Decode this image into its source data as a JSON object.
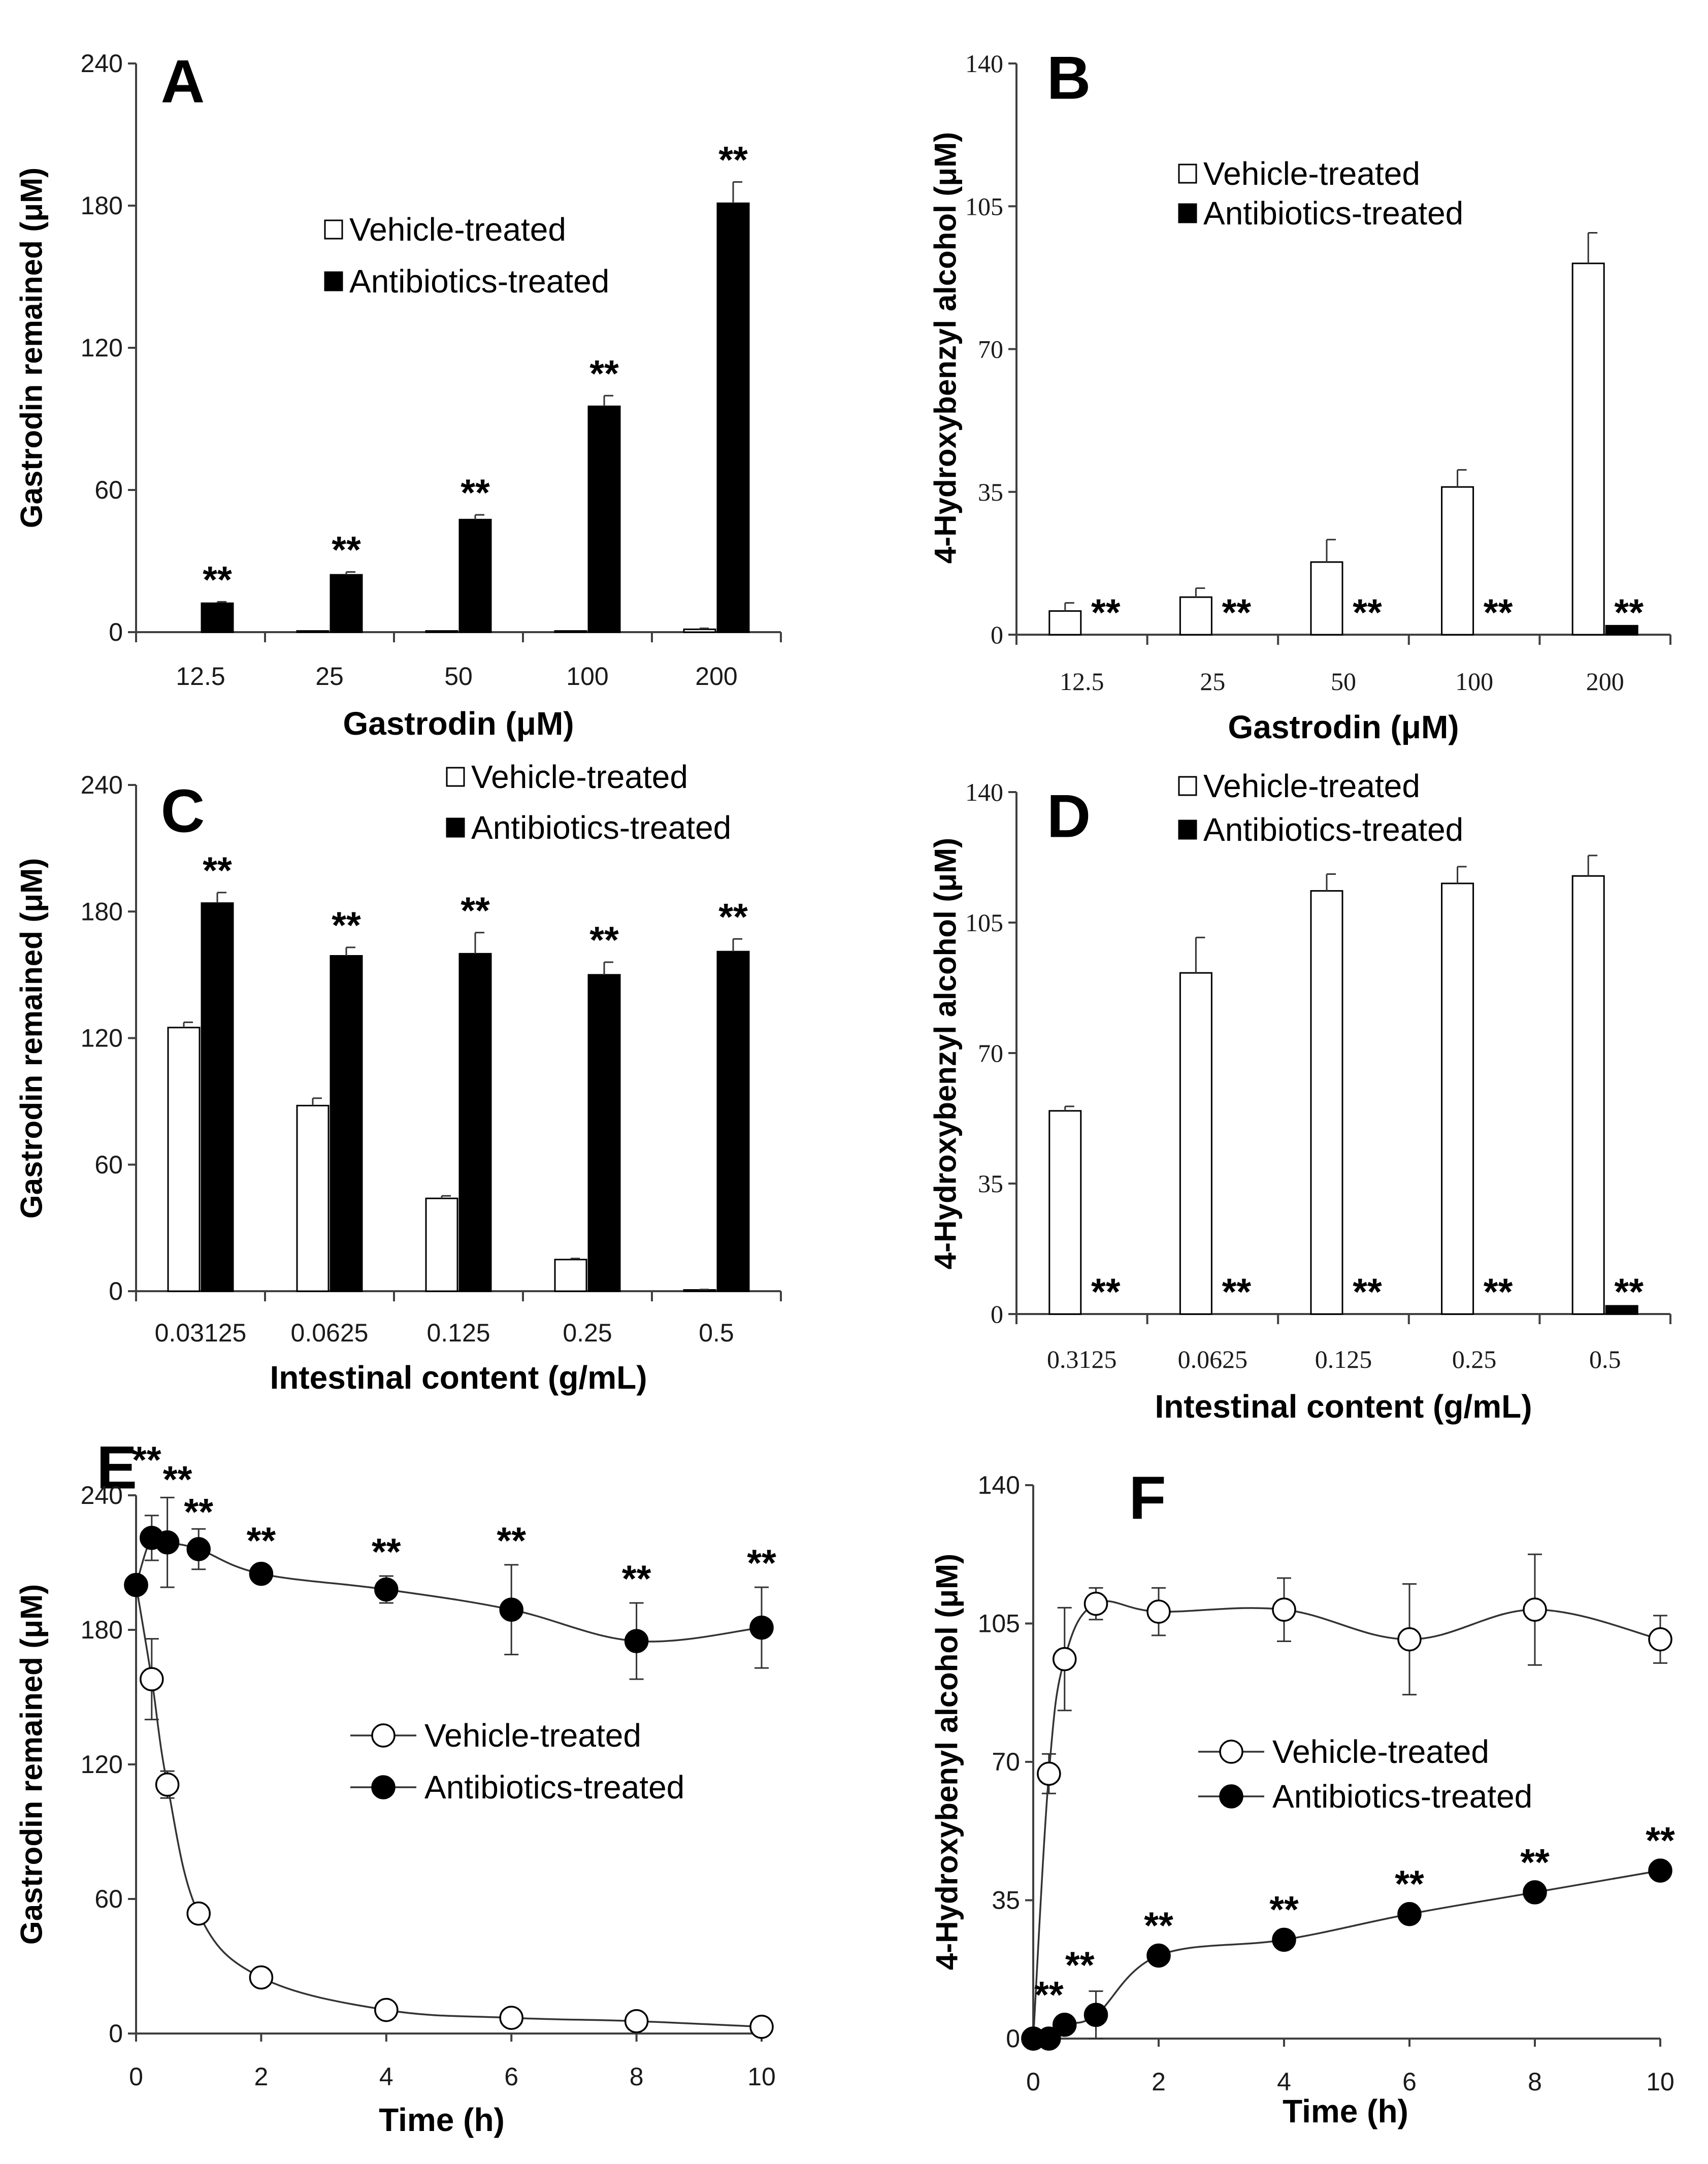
{
  "chart_data": [
    {
      "id": "A",
      "type": "bar",
      "panel_label": "A",
      "xlabel": "Gastrodin (μM)",
      "ylabel": "Gastrodin remained (μM)",
      "ylim": [
        0,
        240
      ],
      "yticks": [
        "0",
        "60",
        "120",
        "180",
        "240"
      ],
      "categories": [
        "12.5",
        "25",
        "50",
        "100",
        "200"
      ],
      "series": [
        {
          "name": "Vehicle-treated",
          "fill": "#ffffff",
          "values": [
            0,
            0.5,
            0.5,
            0.5,
            1.2
          ],
          "errors": [
            0,
            0,
            0,
            0,
            0.4
          ]
        },
        {
          "name": "Antibiotics-treated",
          "fill": "#000000",
          "values": [
            12.2,
            24.2,
            47.5,
            95.3,
            181
          ],
          "errors": [
            0.6,
            1.2,
            2,
            4.5,
            9
          ]
        }
      ],
      "significance": [
        {
          "label": "**",
          "category": 0
        },
        {
          "label": "**",
          "category": 1
        },
        {
          "label": "**",
          "category": 2
        },
        {
          "label": "**",
          "category": 3
        },
        {
          "label": "**",
          "category": 4
        }
      ],
      "legend": "upper-middle"
    },
    {
      "id": "B",
      "type": "bar",
      "panel_label": "B",
      "xlabel": "Gastrodin (μM)",
      "ylabel": "4-Hydroxybenzyl alcohol (μM)",
      "ylim": [
        0,
        140
      ],
      "yticks": [
        "0",
        "35",
        "70",
        "105",
        "140"
      ],
      "categories": [
        "12.5",
        "25",
        "50",
        "100",
        "200"
      ],
      "series": [
        {
          "name": "Vehicle-treated",
          "fill": "#ffffff",
          "values": [
            5.8,
            9.2,
            17.8,
            36.2,
            91
          ],
          "errors": [
            2,
            2.2,
            5.5,
            4.2,
            7.5
          ]
        },
        {
          "name": "Antibiotics-treated",
          "fill": "#000000",
          "values": [
            0,
            0,
            0,
            0,
            2.2
          ],
          "errors": [
            0,
            0,
            0,
            0,
            0
          ]
        }
      ],
      "significance": [
        {
          "label": "**",
          "category": 0
        },
        {
          "label": "**",
          "category": 1
        },
        {
          "label": "**",
          "category": 2
        },
        {
          "label": "**",
          "category": 3
        },
        {
          "label": "**",
          "category": 4
        }
      ],
      "legend": "upper-middle"
    },
    {
      "id": "C",
      "type": "bar",
      "panel_label": "C",
      "xlabel": "Intestinal content (g/mL)",
      "ylabel": "Gastrodin remained (μM)",
      "ylim": [
        0,
        240
      ],
      "yticks": [
        "0",
        "60",
        "120",
        "180",
        "240"
      ],
      "categories": [
        "0.03125",
        "0.0625",
        "0.125",
        "0.25",
        "0.5"
      ],
      "series": [
        {
          "name": "Vehicle-treated",
          "fill": "#ffffff",
          "values": [
            125,
            88,
            44,
            15,
            0.6
          ],
          "errors": [
            2.5,
            3.5,
            1.2,
            0.5,
            0.2
          ]
        },
        {
          "name": "Antibiotics-treated",
          "fill": "#000000",
          "values": [
            184,
            159,
            160,
            150,
            161
          ],
          "errors": [
            5,
            4,
            10,
            6,
            6
          ]
        }
      ],
      "significance": [
        {
          "label": "**",
          "category": 0
        },
        {
          "label": "**",
          "category": 1
        },
        {
          "label": "**",
          "category": 2
        },
        {
          "label": "**",
          "category": 3
        },
        {
          "label": "**",
          "category": 4
        }
      ],
      "legend": "top-right"
    },
    {
      "id": "D",
      "type": "bar",
      "panel_label": "D",
      "xlabel": "Intestinal content (g/mL)",
      "ylabel": "4-Hydroxybenzyl alcohol (μM)",
      "ylim": [
        0,
        140
      ],
      "yticks": [
        "0",
        "35",
        "70",
        "105",
        "140"
      ],
      "categories": [
        "0.3125",
        "0.0625",
        "0.125",
        "0.25",
        "0.5"
      ],
      "series": [
        {
          "name": "Vehicle-treated",
          "fill": "#ffffff",
          "values": [
            54.5,
            91.5,
            113.5,
            115.5,
            117.5
          ],
          "errors": [
            1.2,
            9.5,
            4.5,
            4.5,
            5.5
          ]
        },
        {
          "name": "Antibiotics-treated",
          "fill": "#000000",
          "values": [
            0,
            0,
            0,
            0,
            2.2
          ],
          "errors": [
            0,
            0,
            0,
            0,
            0
          ]
        }
      ],
      "significance": [
        {
          "label": "**",
          "category": 0
        },
        {
          "label": "**",
          "category": 1
        },
        {
          "label": "**",
          "category": 2
        },
        {
          "label": "**",
          "category": 3
        },
        {
          "label": "**",
          "category": 4
        }
      ],
      "legend": "top-right"
    },
    {
      "id": "E",
      "type": "line",
      "panel_label": "E",
      "xlabel": "Time (h)",
      "ylabel": "Gastrodin remained (μM)",
      "xlim": [
        0,
        10
      ],
      "xticks": [
        "0",
        "2",
        "4",
        "6",
        "8",
        "10"
      ],
      "ylim": [
        0,
        240
      ],
      "yticks": [
        "0",
        "60",
        "120",
        "180",
        "240"
      ],
      "series": [
        {
          "name": "Vehicle-treated",
          "marker": "open-circle",
          "x": [
            0,
            0.25,
            0.5,
            1,
            2,
            4,
            6,
            8,
            10
          ],
          "y": [
            200,
            158,
            111,
            53.5,
            25,
            10.5,
            7,
            5.5,
            3
          ],
          "errors": [
            0,
            18,
            6,
            2,
            1.5,
            1,
            0.8,
            0.8,
            0.5
          ]
        },
        {
          "name": "Antibiotics-treated",
          "marker": "filled-circle",
          "x": [
            0,
            0.25,
            0.5,
            1,
            2,
            4,
            6,
            8,
            10
          ],
          "y": [
            200,
            221,
            219,
            216,
            205,
            198,
            189,
            175,
            181
          ],
          "errors": [
            4,
            10,
            20,
            9,
            4,
            6,
            20,
            17,
            18
          ]
        }
      ],
      "significance": [
        {
          "label": "**",
          "x": 0.25
        },
        {
          "label": "**",
          "x": 0.5
        },
        {
          "label": "**",
          "x": 1
        },
        {
          "label": "**",
          "x": 2
        },
        {
          "label": "**",
          "x": 4
        },
        {
          "label": "**",
          "x": 6
        },
        {
          "label": "**",
          "x": 8
        },
        {
          "label": "**",
          "x": 10
        }
      ],
      "legend": "center"
    },
    {
      "id": "F",
      "type": "line",
      "panel_label": "F",
      "xlabel": "Time (h)",
      "ylabel": "4-Hydroxybenyl alcohol (μM)",
      "xlim": [
        0,
        10
      ],
      "xticks": [
        "0",
        "2",
        "4",
        "6",
        "8",
        "10"
      ],
      "ylim": [
        0,
        140
      ],
      "yticks": [
        "0",
        "35",
        "70",
        "105",
        "140"
      ],
      "series": [
        {
          "name": "Vehicle-treated",
          "marker": "open-circle",
          "x": [
            0,
            0.25,
            0.5,
            1,
            2,
            4,
            6,
            8,
            10
          ],
          "y": [
            0,
            67,
            96,
            110,
            108,
            108.5,
            101,
            108.5,
            101
          ],
          "errors": [
            0,
            5,
            13,
            4,
            6,
            8,
            14,
            14,
            6
          ]
        },
        {
          "name": "Antibiotics-treated",
          "marker": "filled-circle",
          "x": [
            0,
            0.25,
            0.5,
            1,
            2,
            4,
            6,
            8,
            10
          ],
          "y": [
            0,
            0,
            3.5,
            6,
            21,
            25,
            31.5,
            37,
            42.5
          ],
          "errors": [
            0,
            0,
            2,
            6,
            1.5,
            1.5,
            1.5,
            1.5,
            1.5
          ]
        }
      ],
      "significance": [
        {
          "label": "**",
          "x": 0.25
        },
        {
          "label": "**",
          "x": 0.5
        },
        {
          "label": "**",
          "x": 2
        },
        {
          "label": "**",
          "x": 4
        },
        {
          "label": "**",
          "x": 6
        },
        {
          "label": "**",
          "x": 8
        },
        {
          "label": "**",
          "x": 10
        }
      ],
      "legend": "center-left"
    }
  ]
}
